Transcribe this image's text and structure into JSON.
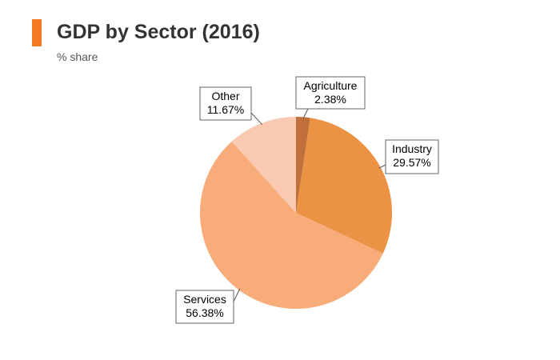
{
  "header": {
    "accent_color": "#f47b20",
    "title": "GDP by Sector (2016)",
    "subtitle": "% share"
  },
  "chart_data": {
    "type": "pie",
    "title": "GDP by Sector (2016)",
    "subtitle": "% share",
    "start_angle_deg": 0,
    "direction": "clockwise",
    "slices": [
      {
        "label": "Agriculture",
        "value": 2.38,
        "display": "2.38%",
        "color": "#c0703a"
      },
      {
        "label": "Industry",
        "value": 29.57,
        "display": "29.57%",
        "color": "#eb9244"
      },
      {
        "label": "Services",
        "value": 56.38,
        "display": "56.38%",
        "color": "#f8ac79"
      },
      {
        "label": "Other",
        "value": 11.67,
        "display": "11.67%",
        "color": "#f9cab1"
      }
    ]
  }
}
